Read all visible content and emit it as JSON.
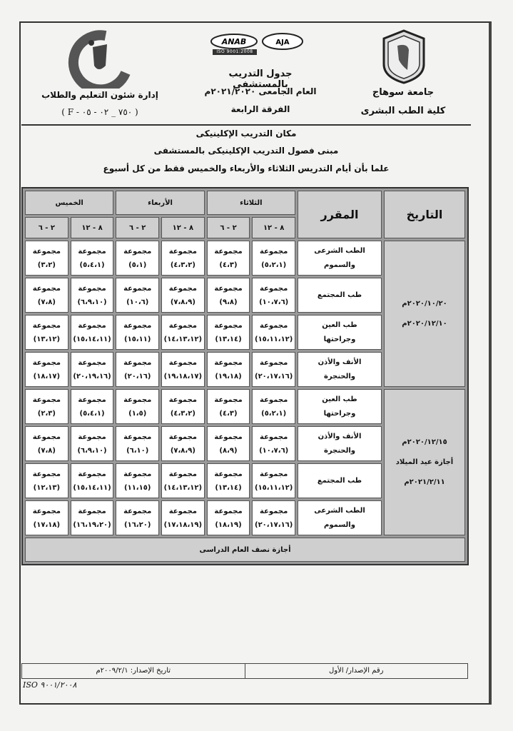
{
  "header": {
    "university": "جامعة سوهاج",
    "faculty": "كلية الطب البشرى",
    "title": "جدول التدريب بالمستشفى",
    "academic_year": "العام الجامعى ٢٠٢١/٢٠٢٠م",
    "level": "الفرقة الرابعة",
    "department": "إدارة شئون التعليم والطلاب",
    "form_code": "( F - ٧٥٠ _ ٠٢ - ٠٥ )",
    "logo_left_text": "جامعة سوهاج كلية الطب",
    "accreditation_logos": [
      "ANAB",
      "AJA",
      "ISO 9001:2008"
    ]
  },
  "info": {
    "line1": "مكان التدريب الإكلينيكى",
    "line2": "مبنى فصول التدريب الإكلينيكى بالمستشفى",
    "line3": "علما بأن أيام التدريس الثلاثاء والأربعاء والخميس فقط من كل أسبوع"
  },
  "table": {
    "col_date": "التاريخ",
    "col_course": "المقرر",
    "days": [
      "الثلاثاء",
      "الأربعاء",
      "الخميس"
    ],
    "slots": [
      "٨ - ١٢",
      "٢ - ٦"
    ],
    "group_label": "مجموعة",
    "blocks": [
      {
        "date_lines": [
          "٢٠٢٠/١٠/٢٠م",
          "٢٠٢٠/١٢/١٠م"
        ],
        "rows": [
          {
            "course": [
              "الطب الشرعى",
              "والسموم"
            ],
            "cells": [
              "(٥،٢،١)",
              "(٤،٣)",
              "(٤،٣،٢)",
              "(٥،١)",
              "(٥،٤،١)",
              "(٣،٢)"
            ]
          },
          {
            "course": [
              "طب المجتمع"
            ],
            "cells": [
              "(١٠،٧،٦)",
              "(٩،٨)",
              "(٧،٨،٩)",
              "(١٠،٦)",
              "(٦،٩،١٠)",
              "(٧،٨)"
            ]
          },
          {
            "course": [
              "طب العين",
              "وجراحتها"
            ],
            "cells": [
              "(١٥،١١،١٢)",
              "(١٣،١٤)",
              "(١٤،١٣،١٢)",
              "(١٥،١١)",
              "(١٥،١٤،١١)",
              "(١٣،١٢)"
            ]
          },
          {
            "course": [
              "الأنف والأذن",
              "والحنجرة"
            ],
            "cells": [
              "(٢٠،١٧،١٦)",
              "(١٩،١٨)",
              "(١٩،١٨،١٧)",
              "(٢٠،١٦)",
              "(٢٠،١٩،١٦)",
              "(١٨،١٧)"
            ]
          }
        ]
      },
      {
        "date_lines": [
          "٢٠٢٠/١٢/١٥م",
          "أجازة عيد الميلاد",
          "٢٠٢١/٢/١١م"
        ],
        "rows": [
          {
            "course": [
              "طب العين",
              "وجراحتها"
            ],
            "cells": [
              "(٥،٢،١)",
              "(٤،٣)",
              "(٤،٣،٢)",
              "(١،٥)",
              "(٥،٤،١)",
              "(٢،٣)"
            ]
          },
          {
            "course": [
              "الأنف والأذن",
              "والحنجرة"
            ],
            "cells": [
              "(١٠،٧،٦)",
              "(٨،٩)",
              "(٧،٨،٩)",
              "(٦،١٠)",
              "(٦،٩،١٠)",
              "(٧،٨)"
            ]
          },
          {
            "course": [
              "طب المجتمع"
            ],
            "cells": [
              "(١٥،١١،١٢)",
              "(١٣،١٤)",
              "(١٤،١٣،١٢)",
              "(١١،١٥)",
              "(١٥،١٤،١١)",
              "(١٢،١٣)"
            ]
          },
          {
            "course": [
              "الطب الشرعى",
              "والسموم"
            ],
            "cells": [
              "(٢٠،١٧،١٦)",
              "(١٨،١٩)",
              "(١٧،١٨،١٩)",
              "(١٦،٢٠)",
              "(١٦،١٩،٢٠)",
              "(١٧،١٨)"
            ]
          }
        ]
      }
    ],
    "vacation": "أجازة نصف العام الدراسى"
  },
  "footer": {
    "issue_number": "رقم الإصدار/ الأول",
    "issue_date": "تاريخ الإصدار: ٢٠٠٩/٢/١م",
    "iso": "ISO ٩٠٠١/٢٠٠٨"
  }
}
